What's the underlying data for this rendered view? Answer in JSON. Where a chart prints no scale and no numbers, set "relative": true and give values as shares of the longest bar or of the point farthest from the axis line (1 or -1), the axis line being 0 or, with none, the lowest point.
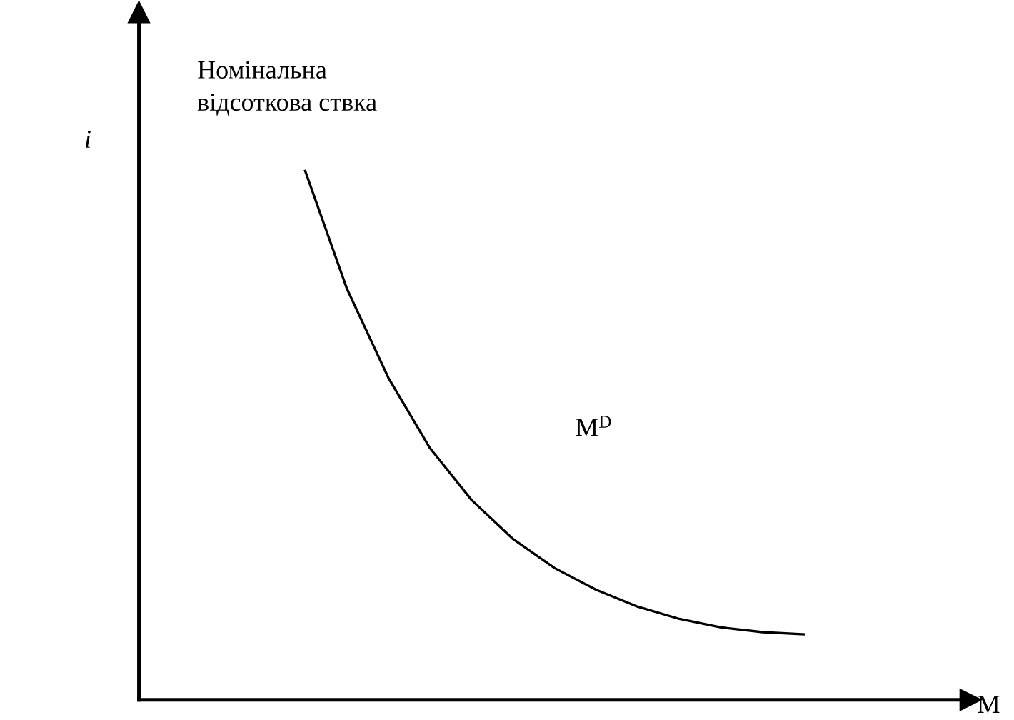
{
  "chart_data": {
    "type": "line",
    "relative": true,
    "ylabel": "i",
    "xlabel": "M",
    "annotations": [
      "Номінальна\nвідсоткова ствка"
    ],
    "categories": [
      null,
      null,
      null,
      null,
      null,
      null,
      null,
      null,
      null,
      null,
      null,
      null,
      null,
      null,
      null,
      null,
      null,
      null,
      null,
      null,
      null
    ],
    "series": [
      {
        "name": "M$^{D}$",
        "color": "#000000",
        "values": [
          null,
          null,
          null,
          null,
          1.0,
          0.778,
          0.609,
          0.476,
          0.378,
          0.304,
          0.249,
          0.208,
          0.176,
          0.153,
          0.137,
          0.128,
          0.124,
          null,
          null,
          null,
          null
        ]
      }
    ],
    "tick_labels": false,
    "marker": "none",
    "line_style": "solid"
  }
}
